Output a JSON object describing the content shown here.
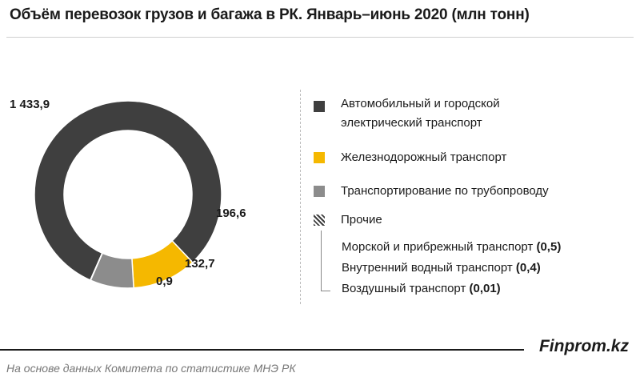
{
  "title": "Объём перевозок грузов и багажа в РК. Январь–июнь 2020 (млн тонн)",
  "chart_data": {
    "type": "pie",
    "style": "donut",
    "title": "Объём перевозок грузов и багажа в РК. Январь–июнь 2020 (млн тонн)",
    "unit": "млн тонн",
    "slices": [
      {
        "label": "Автомобильный и городской электрический транспорт",
        "value": 1433.9,
        "display": "1 433,9",
        "color": "#3f3f3f"
      },
      {
        "label": "Железнодорожный транспорт",
        "value": 196.6,
        "display": "196,6",
        "color": "#f5b800"
      },
      {
        "label": "Транспортирование по трубопроводу",
        "value": 132.7,
        "display": "132,7",
        "color": "#8c8c8c"
      },
      {
        "label": "Прочие",
        "value": 0.9,
        "display": "0,9",
        "color": "#3f3f3f",
        "pattern": "hatch"
      }
    ],
    "legend_placement": "right"
  },
  "legend": {
    "items": [
      {
        "line1": "Автомобильный и  городской",
        "line2": "электрический транспорт"
      },
      {
        "line1": "Железнодорожный транспорт"
      },
      {
        "line1": "Транспортирование по трубопроводу"
      },
      {
        "line1": "Прочие"
      }
    ],
    "others": [
      {
        "label": "Морской и прибрежный  транспорт",
        "value": "(0,5)"
      },
      {
        "label": "Внутренний водный транспорт",
        "value": "(0,4)"
      },
      {
        "label": "Воздушный транспорт",
        "value": "(0,01)"
      }
    ]
  },
  "footer": {
    "brand": "Finprom.kz",
    "source": "На основе данных Комитета по статистике МНЭ РК"
  }
}
